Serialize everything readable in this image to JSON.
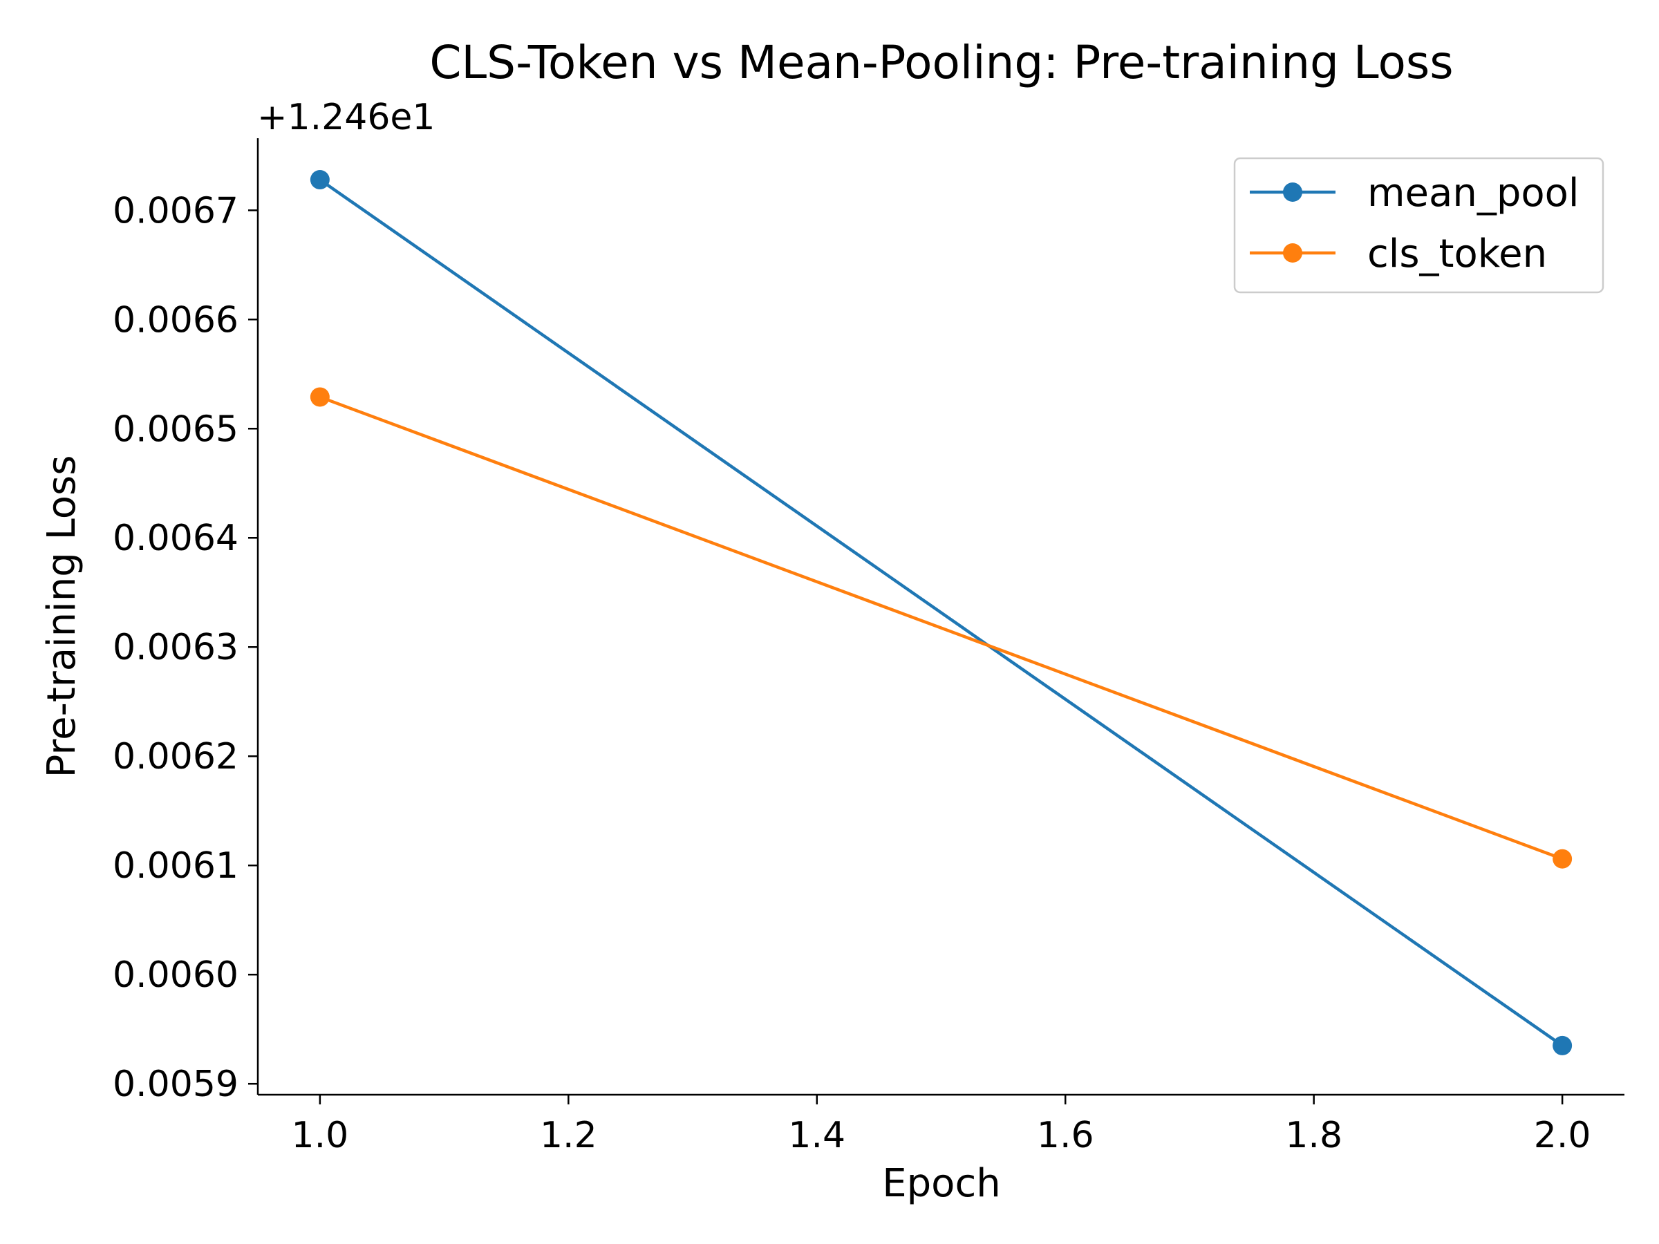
{
  "chart_data": {
    "type": "line",
    "title": "CLS-Token vs Mean-Pooling: Pre-training Loss",
    "xlabel": "Epoch",
    "ylabel": "Pre-training Loss",
    "y_offset_text": "+1.246e1",
    "y_offset": 12.46,
    "xlim": [
      0.95,
      2.05
    ],
    "ylim": [
      0.00589,
      0.006766
    ],
    "xticks": [
      1.0,
      1.2,
      1.4,
      1.6,
      1.8,
      2.0
    ],
    "xtick_labels": [
      "1.0",
      "1.2",
      "1.4",
      "1.6",
      "1.8",
      "2.0"
    ],
    "yticks": [
      0.0059,
      0.006,
      0.0061,
      0.0062,
      0.0063,
      0.0064,
      0.0065,
      0.0066,
      0.0067
    ],
    "ytick_labels": [
      "0.0059",
      "0.0060",
      "0.0061",
      "0.0062",
      "0.0063",
      "0.0064",
      "0.0065",
      "0.0066",
      "0.0067"
    ],
    "grid": false,
    "legend_position": "top-right",
    "series": [
      {
        "name": "mean_pool",
        "color": "#1f77b4",
        "x": [
          1.0,
          2.0
        ],
        "y": [
          0.006728,
          0.005935
        ]
      },
      {
        "name": "cls_token",
        "color": "#ff7f0e",
        "x": [
          1.0,
          2.0
        ],
        "y": [
          0.006529,
          0.006106
        ]
      }
    ]
  }
}
